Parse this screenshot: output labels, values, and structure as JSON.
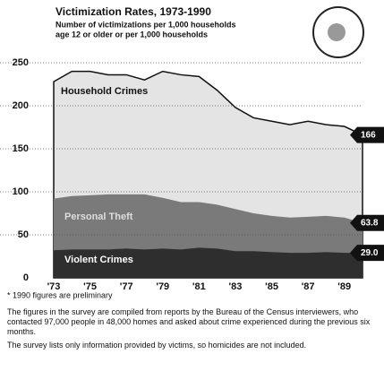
{
  "chart_data": {
    "type": "area",
    "title": "Victimization Rates, 1973-1990",
    "subtitle": [
      "Number of victimizations per 1,000 households",
      "age 12 or older or per 1,000 households"
    ],
    "x": [
      1973,
      1974,
      1975,
      1976,
      1977,
      1978,
      1979,
      1980,
      1981,
      1982,
      1983,
      1984,
      1985,
      1986,
      1987,
      1988,
      1989,
      1990
    ],
    "xlim": [
      1973,
      1990
    ],
    "xticks": [
      {
        "value": 1973,
        "label": "'73"
      },
      {
        "value": 1975,
        "label": "'75"
      },
      {
        "value": 1977,
        "label": "'77"
      },
      {
        "value": 1979,
        "label": "'79"
      },
      {
        "value": 1981,
        "label": "'81"
      },
      {
        "value": 1983,
        "label": "'83"
      },
      {
        "value": 1985,
        "label": "'85"
      },
      {
        "value": 1987,
        "label": "'87"
      },
      {
        "value": 1989,
        "label": "'89"
      }
    ],
    "ylim": [
      0,
      250
    ],
    "yticks": [
      0,
      50,
      100,
      150,
      200,
      250
    ],
    "grid": true,
    "series": [
      {
        "name": "Household Crimes",
        "color": "#e4e4e4",
        "values": [
          228,
          240,
          240,
          236,
          236,
          230,
          240,
          236,
          234,
          218,
          198,
          186,
          182,
          178,
          182,
          178,
          176,
          166
        ],
        "value_labels": [
          null,
          null,
          null,
          null,
          null,
          null,
          null,
          null,
          null,
          null,
          null,
          null,
          null,
          null,
          null,
          null,
          null,
          "166"
        ]
      },
      {
        "name": "Personal Theft",
        "color": "#7a7a7a",
        "values": [
          92,
          95,
          96,
          97,
          97,
          97,
          93,
          88,
          88,
          85,
          80,
          75,
          72,
          70,
          71,
          72,
          70,
          63.8
        ],
        "value_labels": [
          null,
          null,
          null,
          null,
          null,
          null,
          null,
          null,
          null,
          null,
          null,
          null,
          null,
          null,
          null,
          null,
          null,
          "63.8"
        ]
      },
      {
        "name": "Violent Crimes",
        "color": "#2e2e2e",
        "values": [
          32,
          33,
          33,
          33,
          34,
          33,
          34,
          33,
          35,
          34,
          31,
          31,
          30,
          29,
          29,
          30,
          29,
          29.0
        ],
        "value_labels": [
          null,
          null,
          null,
          null,
          null,
          null,
          null,
          null,
          null,
          null,
          null,
          null,
          null,
          null,
          null,
          null,
          null,
          "29.0"
        ]
      }
    ],
    "footnote": "* 1990 figures are preliminary",
    "notes": [
      "The figures in the survey are compiled from reports by the Bureau of the Census interviewers, who contacted 97,000 people in 48,000 homes and asked about crime experienced during the previous six months.",
      "The survey lists only information provided by victims, so homicides are not included."
    ]
  }
}
